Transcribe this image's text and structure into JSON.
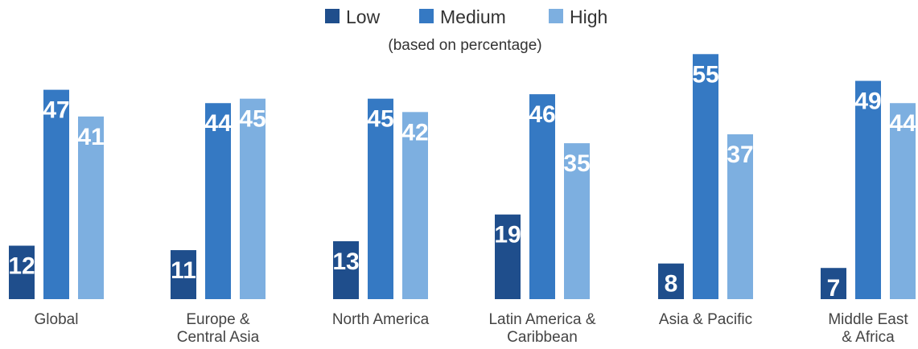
{
  "chart_data": {
    "type": "bar",
    "subtitle": "(based on percentage)",
    "categories": [
      [
        "Global"
      ],
      [
        "Europe &",
        "Central Asia"
      ],
      [
        "North America"
      ],
      [
        "Latin America &",
        "Caribbean"
      ],
      [
        "Asia & Pacific"
      ],
      [
        "Middle East",
        "& Africa"
      ]
    ],
    "series": [
      {
        "name": "Low",
        "color": "#1f4e8c",
        "values": [
          12,
          11,
          13,
          19,
          8,
          7
        ]
      },
      {
        "name": "Medium",
        "color": "#3579c3",
        "values": [
          47,
          44,
          45,
          46,
          55,
          49
        ]
      },
      {
        "name": "High",
        "color": "#7dafe0",
        "values": [
          41,
          45,
          42,
          35,
          37,
          44
        ]
      }
    ],
    "ylim": [
      0,
      60
    ],
    "legend_position": "top-center",
    "grid": false
  }
}
